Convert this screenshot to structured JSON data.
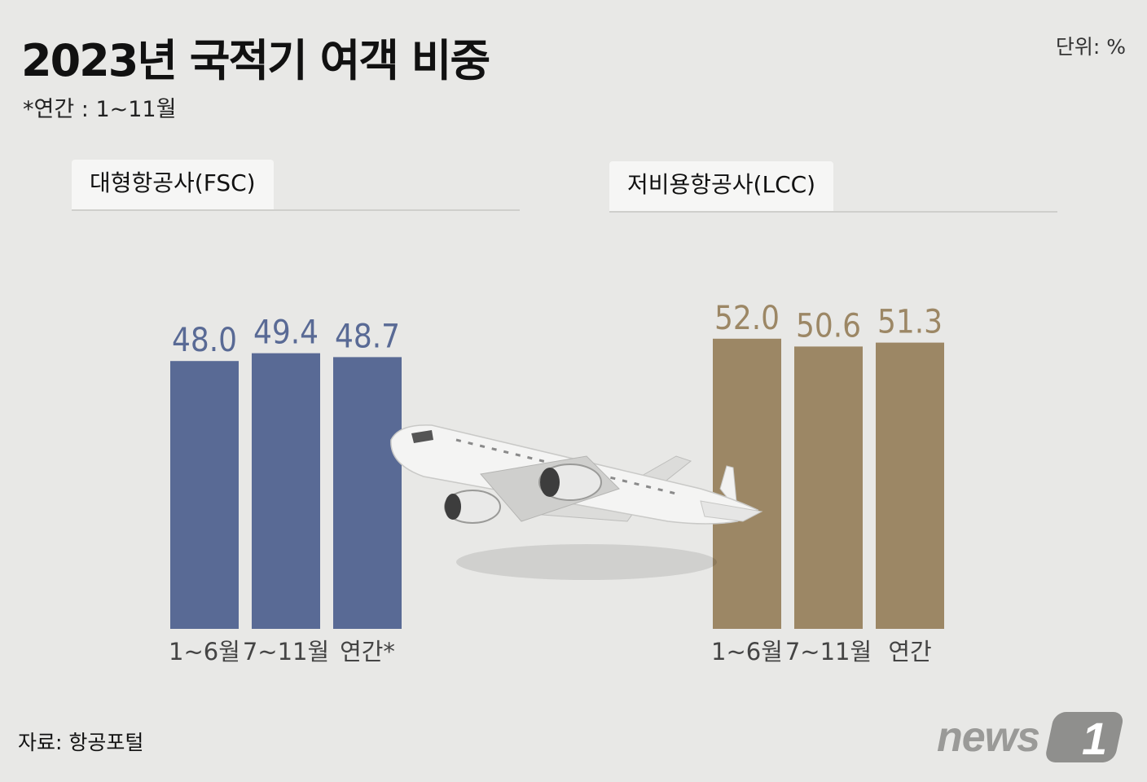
{
  "title": "2023년 국적기 여객 비중",
  "subtitle": "*연간 : 1~11월",
  "unit": "단위: %",
  "source": "자료: 항공포털",
  "logo_text": "news 1",
  "colors": {
    "fsc": "#596a95",
    "lcc": "#9c8765",
    "background": "#e8e8e6"
  },
  "chart_data": [
    {
      "type": "bar",
      "title": "대형항공사(FSC)",
      "categories": [
        "1~6월",
        "7~11월",
        "연간*"
      ],
      "values": [
        48.0,
        49.4,
        48.7
      ],
      "value_labels": [
        "48.0",
        "49.4",
        "48.7"
      ],
      "color": "#596a95"
    },
    {
      "type": "bar",
      "title": "저비용항공사(LCC)",
      "categories": [
        "1~6월",
        "7~11월",
        "연간"
      ],
      "values": [
        52.0,
        50.6,
        51.3
      ],
      "value_labels": [
        "52.0",
        "50.6",
        "51.3"
      ],
      "color": "#9c8765"
    }
  ],
  "decoration": {
    "icon": "airplane-icon"
  }
}
